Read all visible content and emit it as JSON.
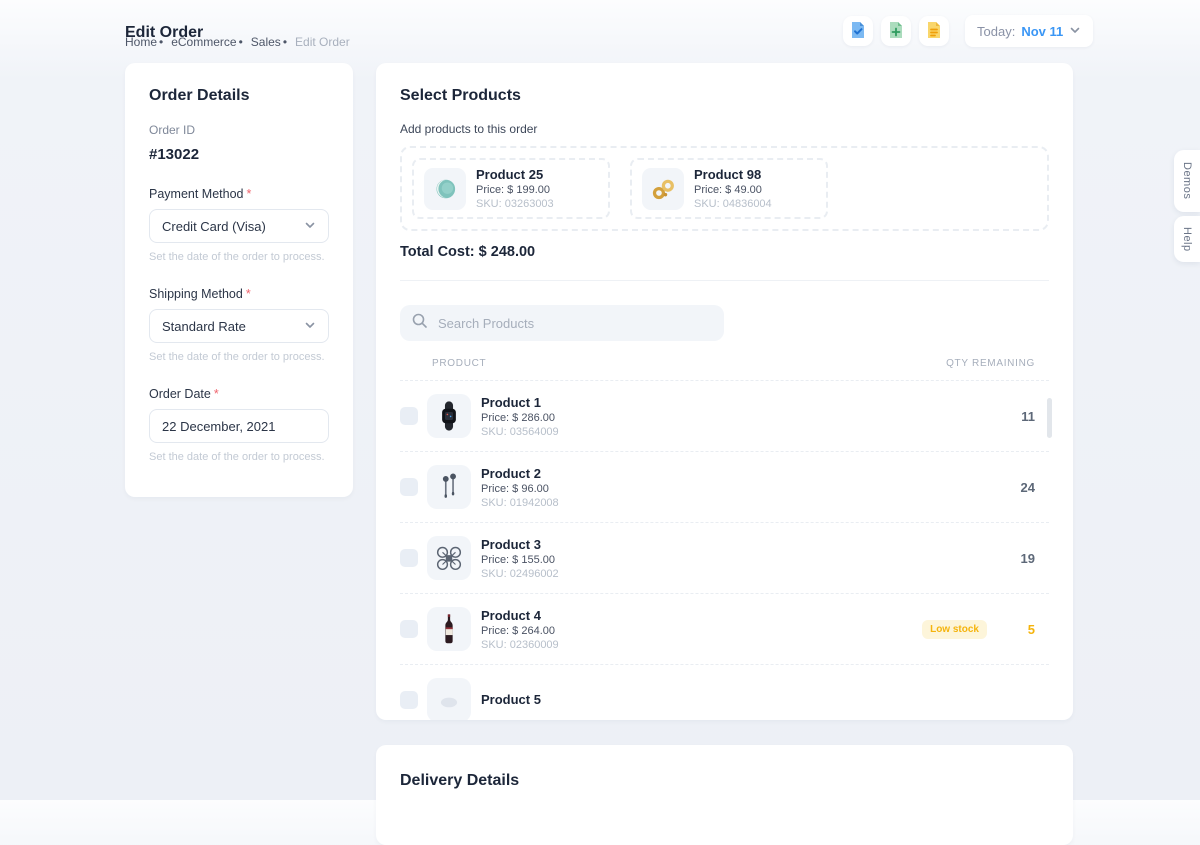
{
  "page": {
    "title": "Edit Order",
    "breadcrumb": [
      {
        "label": "Home"
      },
      {
        "label": "eCommerce"
      },
      {
        "label": "Sales"
      },
      {
        "label": "Edit Order"
      }
    ]
  },
  "topbar": {
    "icons": [
      {
        "name": "file-check-icon",
        "color": "#7cb9f2"
      },
      {
        "name": "file-add-icon",
        "color": "#9fd4b4"
      },
      {
        "name": "file-report-icon",
        "color": "#f9d66b"
      }
    ],
    "date_widget": {
      "prefix": "Today:",
      "value": "Nov 11"
    }
  },
  "order_details": {
    "title": "Order Details",
    "order_id_label": "Order ID",
    "order_id": "#13022",
    "required_mark": "*",
    "fields": [
      {
        "label": "Payment Method",
        "value": "Credit Card (Visa)",
        "type": "select",
        "helper": "Set the date of the order to process."
      },
      {
        "label": "Shipping Method",
        "value": "Standard Rate",
        "type": "select",
        "helper": "Set the date of the order to process."
      },
      {
        "label": "Order Date",
        "value": "22 December, 2021",
        "type": "text",
        "helper": "Set the date of the order to process."
      }
    ]
  },
  "select_products": {
    "title": "Select Products",
    "subtitle": "Add products to this order",
    "selected": [
      {
        "name": "Product 25",
        "price": "Price: $ 199.00",
        "sku": "SKU: 03263003",
        "image": "macaron"
      },
      {
        "name": "Product 98",
        "price": "Price: $ 49.00",
        "sku": "SKU: 04836004",
        "image": "jewelry"
      }
    ],
    "total_cost": "Total Cost: $ 248.00",
    "search_placeholder": "Search Products",
    "table": {
      "columns": [
        "PRODUCT",
        "QTY REMAINING"
      ],
      "rows": [
        {
          "name": "Product 1",
          "price": "Price: $ 286.00",
          "sku": "SKU: 03564009",
          "qty": "11",
          "image": "watch"
        },
        {
          "name": "Product 2",
          "price": "Price: $ 96.00",
          "sku": "SKU: 01942008",
          "qty": "24",
          "image": "earbuds"
        },
        {
          "name": "Product 3",
          "price": "Price: $ 155.00",
          "sku": "SKU: 02496002",
          "qty": "19",
          "image": "drone"
        },
        {
          "name": "Product 4",
          "price": "Price: $ 264.00",
          "sku": "SKU: 02360009",
          "qty": "5",
          "badge": "Low stock",
          "image": "wine"
        },
        {
          "name": "Product 5",
          "price": "",
          "sku": "",
          "qty": "",
          "image": "generic"
        }
      ]
    }
  },
  "delivery_details": {
    "title": "Delivery Details"
  },
  "side_tabs": [
    {
      "label": "Demos"
    },
    {
      "label": "Help"
    }
  ],
  "colors": {
    "accent_blue": "#3a96f5",
    "warning": "#f5b40d",
    "warning_bg": "#fdf5da",
    "danger": "#f0646d"
  }
}
